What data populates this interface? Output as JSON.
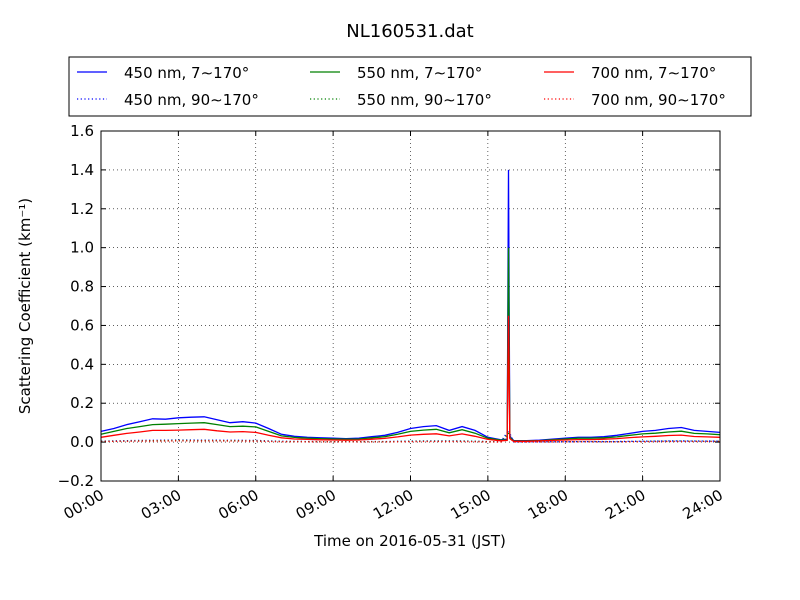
{
  "chart_data": {
    "type": "line",
    "title": "NL160531.dat",
    "xlabel": "Time on 2016-05-31 (JST)",
    "ylabel": "Scattering Coefficient (km⁻¹)",
    "xlim": [
      "00:00",
      "24:00"
    ],
    "ylim": [
      -0.2,
      1.6
    ],
    "x_ticks": [
      "00:00",
      "03:00",
      "06:00",
      "09:00",
      "12:00",
      "15:00",
      "18:00",
      "21:00",
      "24:00"
    ],
    "y_ticks": [
      "−0.2",
      "0.0",
      "0.2",
      "0.4",
      "0.6",
      "0.8",
      "1.0",
      "1.2",
      "1.4",
      "1.6"
    ],
    "grid": true,
    "legend_position": "top",
    "series": [
      {
        "name": "450 nm, 7∼170°",
        "color": "#0000ff",
        "style": "solid",
        "points": [
          [
            "00:00",
            0.055
          ],
          [
            "00:30",
            0.07
          ],
          [
            "01:00",
            0.09
          ],
          [
            "01:30",
            0.105
          ],
          [
            "02:00",
            0.12
          ],
          [
            "02:30",
            0.118
          ],
          [
            "03:00",
            0.125
          ],
          [
            "03:30",
            0.128
          ],
          [
            "04:00",
            0.13
          ],
          [
            "04:30",
            0.115
          ],
          [
            "05:00",
            0.1
          ],
          [
            "05:30",
            0.105
          ],
          [
            "06:00",
            0.098
          ],
          [
            "06:30",
            0.07
          ],
          [
            "07:00",
            0.04
          ],
          [
            "07:30",
            0.03
          ],
          [
            "08:00",
            0.025
          ],
          [
            "08:30",
            0.022
          ],
          [
            "09:00",
            0.02
          ],
          [
            "09:30",
            0.018
          ],
          [
            "10:00",
            0.02
          ],
          [
            "10:30",
            0.028
          ],
          [
            "11:00",
            0.035
          ],
          [
            "11:30",
            0.05
          ],
          [
            "12:00",
            0.07
          ],
          [
            "12:30",
            0.08
          ],
          [
            "13:00",
            0.085
          ],
          [
            "13:30",
            0.06
          ],
          [
            "14:00",
            0.08
          ],
          [
            "14:30",
            0.06
          ],
          [
            "15:00",
            0.025
          ],
          [
            "15:30",
            0.012
          ],
          [
            "15:45",
            0.015
          ],
          [
            "15:48",
            1.4
          ],
          [
            "15:51",
            0.03
          ],
          [
            "16:00",
            0.008
          ],
          [
            "16:30",
            0.008
          ],
          [
            "17:00",
            0.01
          ],
          [
            "17:30",
            0.015
          ],
          [
            "18:00",
            0.02
          ],
          [
            "18:30",
            0.025
          ],
          [
            "19:00",
            0.025
          ],
          [
            "19:30",
            0.028
          ],
          [
            "20:00",
            0.035
          ],
          [
            "20:30",
            0.045
          ],
          [
            "21:00",
            0.055
          ],
          [
            "21:30",
            0.06
          ],
          [
            "22:00",
            0.07
          ],
          [
            "22:30",
            0.075
          ],
          [
            "23:00",
            0.06
          ],
          [
            "23:30",
            0.055
          ],
          [
            "24:00",
            0.05
          ]
        ]
      },
      {
        "name": "550 nm, 7∼170°",
        "color": "#008000",
        "style": "solid",
        "points": [
          [
            "00:00",
            0.04
          ],
          [
            "00:30",
            0.055
          ],
          [
            "01:00",
            0.07
          ],
          [
            "01:30",
            0.08
          ],
          [
            "02:00",
            0.09
          ],
          [
            "02:30",
            0.092
          ],
          [
            "03:00",
            0.095
          ],
          [
            "03:30",
            0.098
          ],
          [
            "04:00",
            0.1
          ],
          [
            "04:30",
            0.09
          ],
          [
            "05:00",
            0.08
          ],
          [
            "05:30",
            0.082
          ],
          [
            "06:00",
            0.078
          ],
          [
            "06:30",
            0.055
          ],
          [
            "07:00",
            0.032
          ],
          [
            "07:30",
            0.024
          ],
          [
            "08:00",
            0.02
          ],
          [
            "08:30",
            0.018
          ],
          [
            "09:00",
            0.016
          ],
          [
            "09:30",
            0.015
          ],
          [
            "10:00",
            0.016
          ],
          [
            "10:30",
            0.022
          ],
          [
            "11:00",
            0.028
          ],
          [
            "11:30",
            0.04
          ],
          [
            "12:00",
            0.055
          ],
          [
            "12:30",
            0.062
          ],
          [
            "13:00",
            0.066
          ],
          [
            "13:30",
            0.048
          ],
          [
            "14:00",
            0.064
          ],
          [
            "14:30",
            0.046
          ],
          [
            "15:00",
            0.02
          ],
          [
            "15:30",
            0.01
          ],
          [
            "15:45",
            0.012
          ],
          [
            "15:48",
            1.0
          ],
          [
            "15:51",
            0.025
          ],
          [
            "16:00",
            0.006
          ],
          [
            "16:30",
            0.006
          ],
          [
            "17:00",
            0.008
          ],
          [
            "17:30",
            0.012
          ],
          [
            "18:00",
            0.016
          ],
          [
            "18:30",
            0.02
          ],
          [
            "19:00",
            0.02
          ],
          [
            "19:30",
            0.022
          ],
          [
            "20:00",
            0.027
          ],
          [
            "20:30",
            0.035
          ],
          [
            "21:00",
            0.042
          ],
          [
            "21:30",
            0.046
          ],
          [
            "22:00",
            0.052
          ],
          [
            "22:30",
            0.056
          ],
          [
            "23:00",
            0.045
          ],
          [
            "23:30",
            0.042
          ],
          [
            "24:00",
            0.038
          ]
        ]
      },
      {
        "name": "700 nm, 7∼170°",
        "color": "#ff0000",
        "style": "solid",
        "points": [
          [
            "00:00",
            0.025
          ],
          [
            "00:30",
            0.035
          ],
          [
            "01:00",
            0.045
          ],
          [
            "01:30",
            0.052
          ],
          [
            "02:00",
            0.06
          ],
          [
            "02:30",
            0.06
          ],
          [
            "03:00",
            0.062
          ],
          [
            "03:30",
            0.064
          ],
          [
            "04:00",
            0.066
          ],
          [
            "04:30",
            0.058
          ],
          [
            "05:00",
            0.052
          ],
          [
            "05:30",
            0.054
          ],
          [
            "06:00",
            0.05
          ],
          [
            "06:30",
            0.035
          ],
          [
            "07:00",
            0.022
          ],
          [
            "07:30",
            0.016
          ],
          [
            "08:00",
            0.014
          ],
          [
            "08:30",
            0.012
          ],
          [
            "09:00",
            0.011
          ],
          [
            "09:30",
            0.01
          ],
          [
            "10:00",
            0.011
          ],
          [
            "10:30",
            0.015
          ],
          [
            "11:00",
            0.019
          ],
          [
            "11:30",
            0.027
          ],
          [
            "12:00",
            0.036
          ],
          [
            "12:30",
            0.04
          ],
          [
            "13:00",
            0.043
          ],
          [
            "13:30",
            0.032
          ],
          [
            "14:00",
            0.042
          ],
          [
            "14:30",
            0.03
          ],
          [
            "15:00",
            0.014
          ],
          [
            "15:30",
            0.007
          ],
          [
            "15:45",
            0.009
          ],
          [
            "15:48",
            0.65
          ],
          [
            "15:51",
            0.018
          ],
          [
            "16:00",
            0.004
          ],
          [
            "16:30",
            0.004
          ],
          [
            "17:00",
            0.006
          ],
          [
            "17:30",
            0.009
          ],
          [
            "18:00",
            0.011
          ],
          [
            "18:30",
            0.013
          ],
          [
            "19:00",
            0.013
          ],
          [
            "19:30",
            0.015
          ],
          [
            "20:00",
            0.018
          ],
          [
            "20:30",
            0.023
          ],
          [
            "21:00",
            0.027
          ],
          [
            "21:30",
            0.03
          ],
          [
            "22:00",
            0.034
          ],
          [
            "22:30",
            0.036
          ],
          [
            "23:00",
            0.029
          ],
          [
            "23:30",
            0.027
          ],
          [
            "24:00",
            0.025
          ]
        ]
      },
      {
        "name": "450 nm, 90∼170°",
        "color": "#0000ff",
        "style": "dotted",
        "points": [
          [
            "00:00",
            0.005
          ],
          [
            "01:30",
            0.009
          ],
          [
            "03:00",
            0.011
          ],
          [
            "04:30",
            0.01
          ],
          [
            "06:00",
            0.009
          ],
          [
            "07:00",
            0.004
          ],
          [
            "09:00",
            0.002
          ],
          [
            "11:00",
            0.003
          ],
          [
            "12:30",
            0.006
          ],
          [
            "14:00",
            0.006
          ],
          [
            "15:30",
            0.001
          ],
          [
            "15:48",
            0.06
          ],
          [
            "16:00",
            0.001
          ],
          [
            "18:00",
            0.002
          ],
          [
            "20:00",
            0.003
          ],
          [
            "22:00",
            0.006
          ],
          [
            "24:00",
            0.005
          ]
        ]
      },
      {
        "name": "550 nm, 90∼170°",
        "color": "#008000",
        "style": "dotted",
        "points": [
          [
            "00:00",
            0.004
          ],
          [
            "01:30",
            0.007
          ],
          [
            "03:00",
            0.009
          ],
          [
            "04:30",
            0.008
          ],
          [
            "06:00",
            0.007
          ],
          [
            "07:00",
            0.003
          ],
          [
            "09:00",
            0.002
          ],
          [
            "11:00",
            0.002
          ],
          [
            "12:30",
            0.005
          ],
          [
            "14:00",
            0.005
          ],
          [
            "15:30",
            0.001
          ],
          [
            "15:48",
            0.045
          ],
          [
            "16:00",
            0.001
          ],
          [
            "18:00",
            0.002
          ],
          [
            "20:00",
            0.002
          ],
          [
            "22:00",
            0.005
          ],
          [
            "24:00",
            0.004
          ]
        ]
      },
      {
        "name": "700 nm, 90∼170°",
        "color": "#ff0000",
        "style": "dotted",
        "points": [
          [
            "00:00",
            0.003
          ],
          [
            "01:30",
            0.005
          ],
          [
            "03:00",
            0.006
          ],
          [
            "04:30",
            0.006
          ],
          [
            "06:00",
            0.005
          ],
          [
            "07:00",
            0.002
          ],
          [
            "09:00",
            0.001
          ],
          [
            "11:00",
            0.001
          ],
          [
            "12:30",
            0.003
          ],
          [
            "14:00",
            0.003
          ],
          [
            "15:30",
            0.0
          ],
          [
            "15:48",
            0.03
          ],
          [
            "16:00",
            0.0
          ],
          [
            "18:00",
            0.001
          ],
          [
            "20:00",
            0.001
          ],
          [
            "22:00",
            0.003
          ],
          [
            "24:00",
            0.003
          ]
        ]
      }
    ]
  }
}
